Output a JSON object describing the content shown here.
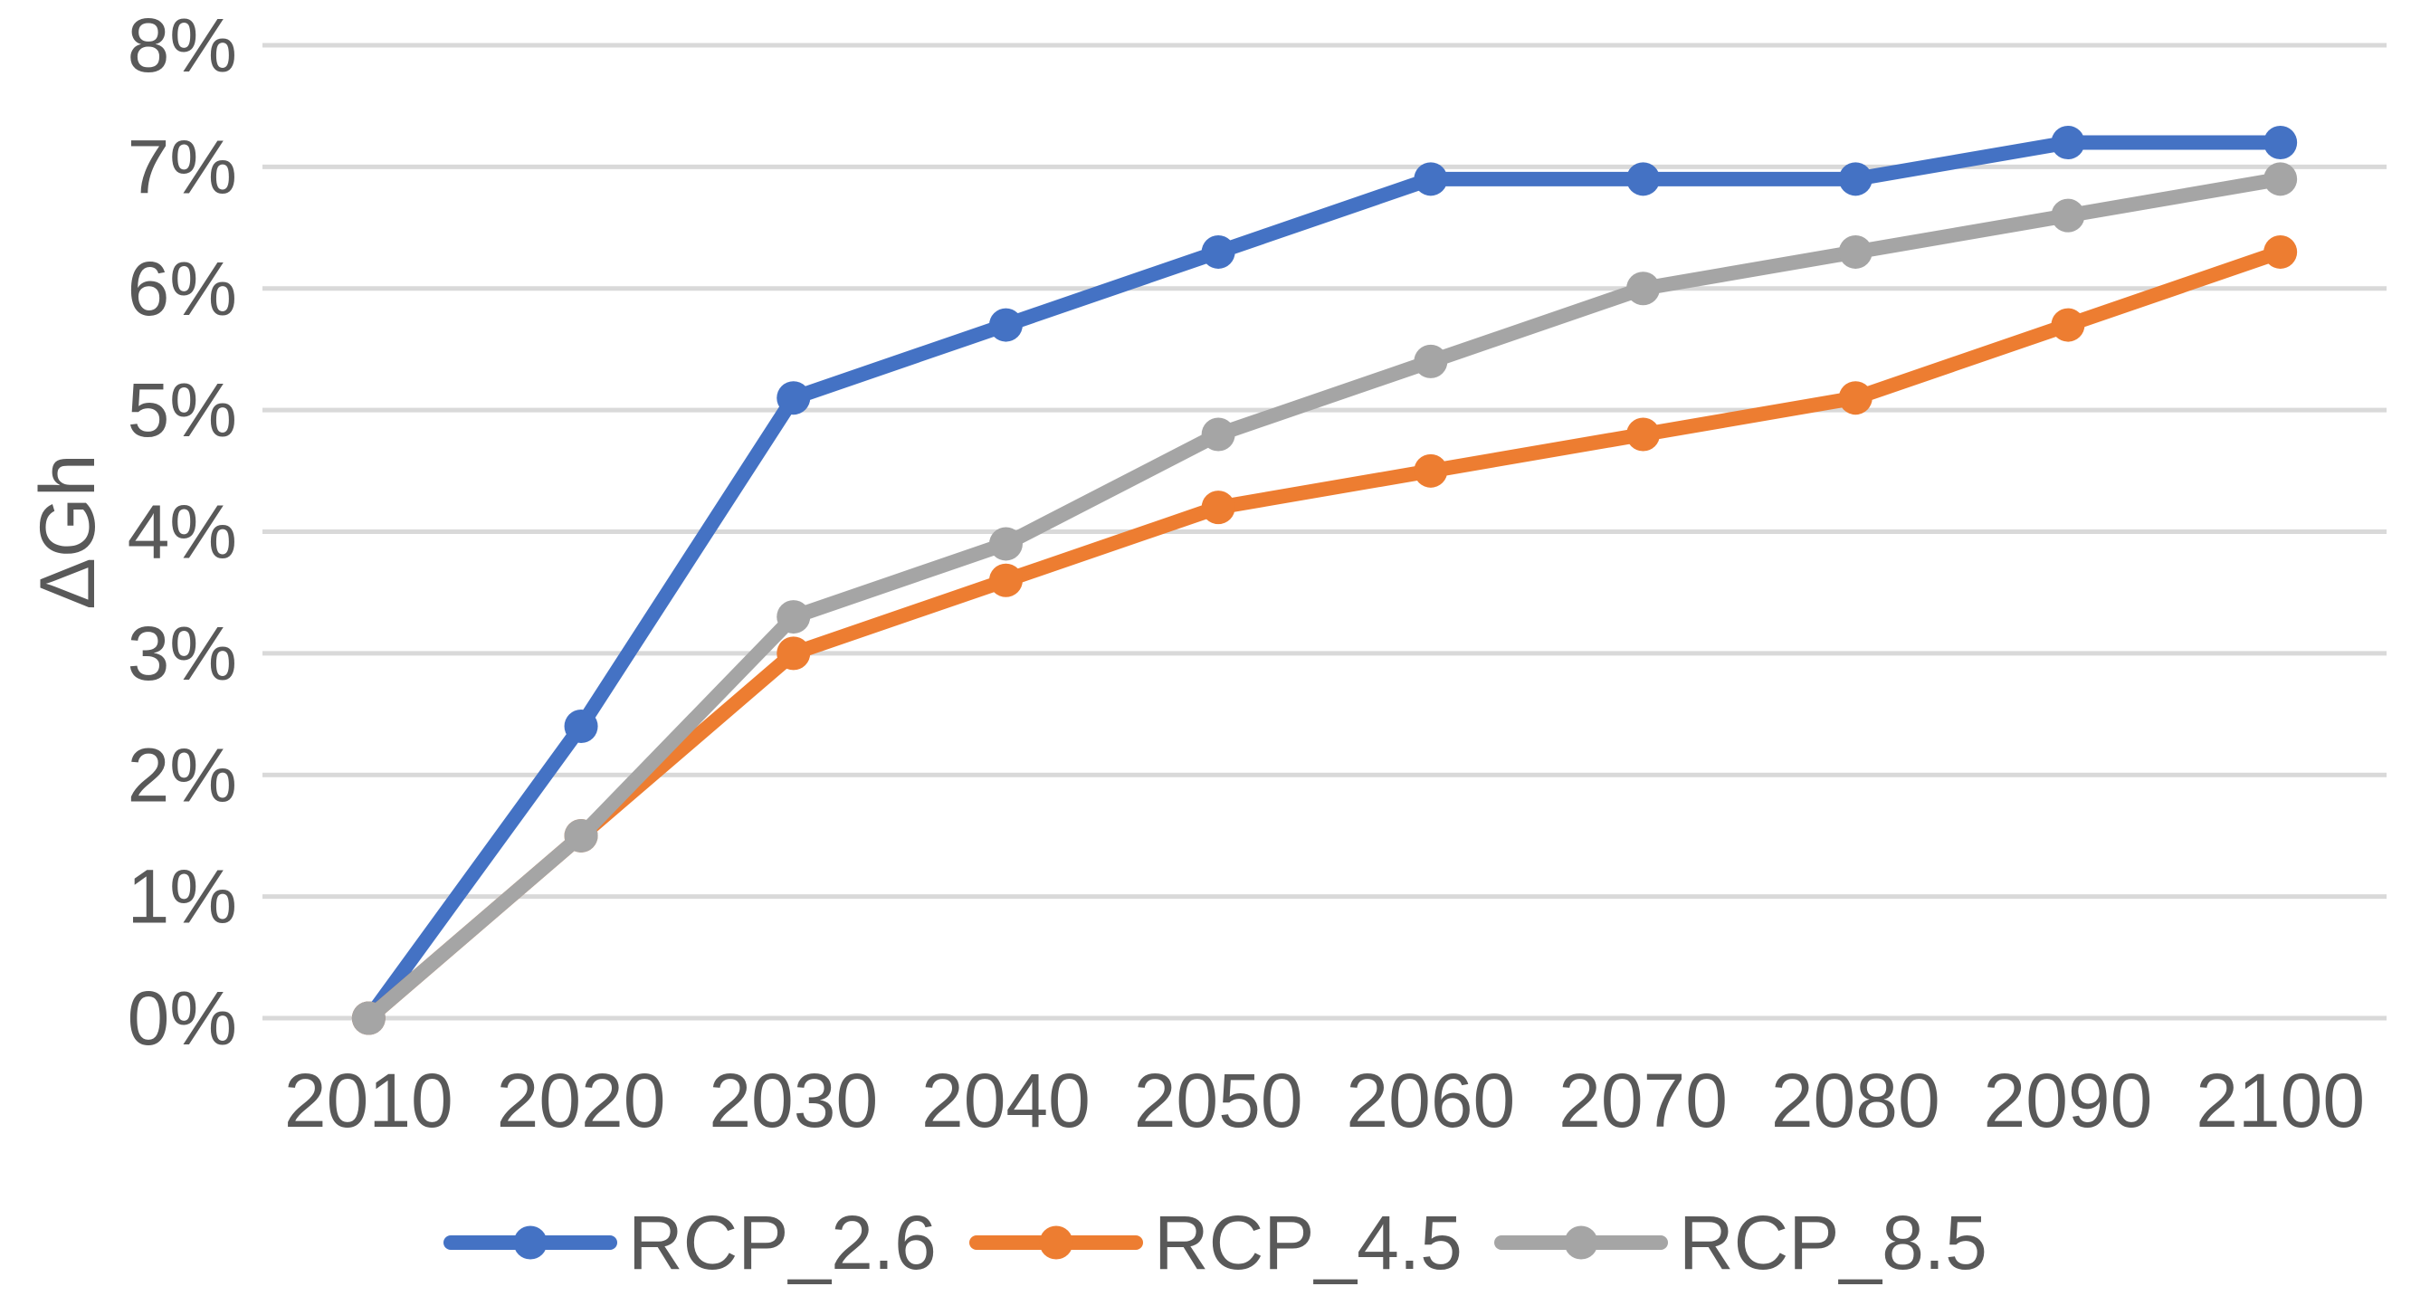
{
  "chart_data": {
    "type": "line",
    "title": "",
    "xlabel": "",
    "ylabel": "ΔGh",
    "categories": [
      "2010",
      "2020",
      "2030",
      "2040",
      "2050",
      "2060",
      "2070",
      "2080",
      "2090",
      "2100"
    ],
    "series": [
      {
        "name": "RCP_2.6",
        "color": "#4472C4",
        "values": [
          0,
          2.4,
          5.1,
          5.7,
          6.3,
          6.9,
          6.9,
          6.9,
          7.2,
          7.2
        ]
      },
      {
        "name": "RCP_4.5",
        "color": "#ED7D31",
        "values": [
          0,
          1.5,
          3.0,
          3.6,
          4.2,
          4.5,
          4.8,
          5.1,
          5.7,
          6.3
        ]
      },
      {
        "name": "RCP_8.5",
        "color": "#A5A5A5",
        "values": [
          0,
          1.5,
          3.3,
          3.9,
          4.8,
          5.4,
          6.0,
          6.3,
          6.6,
          6.9
        ]
      }
    ],
    "y_ticks": [
      "0%",
      "1%",
      "2%",
      "3%",
      "4%",
      "5%",
      "6%",
      "7%",
      "8%"
    ],
    "ylim": [
      0,
      8
    ],
    "y_tick_step": 1,
    "grid": "horizontal",
    "legend_position": "bottom",
    "marker": "circle"
  },
  "colors": {
    "gridline": "#D9D9D9",
    "tick_text": "#595959",
    "axis_title_text": "#595959",
    "legend_text": "#595959",
    "background": "#FFFFFF"
  }
}
